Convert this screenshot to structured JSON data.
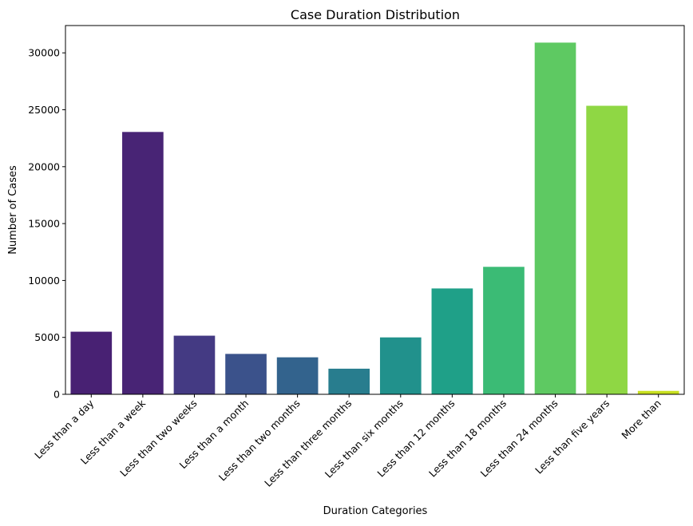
{
  "chart_data": {
    "type": "bar",
    "title": "Case Duration Distribution",
    "xlabel": "Duration Categories",
    "ylabel": "Number of Cases",
    "categories": [
      "Less than a day",
      "Less than a week",
      "Less than two weeks",
      "Less than a month",
      "Less than two months",
      "Less than three months",
      "Less than six months",
      "Less than 12 months",
      "Less than 18 months",
      "Less than 24 months",
      "Less than five years",
      "More than"
    ],
    "values": [
      5500,
      23050,
      5150,
      3550,
      3250,
      2250,
      5000,
      9300,
      11200,
      30900,
      25350,
      300
    ],
    "colors": [
      "#482173",
      "#482475",
      "#443a83",
      "#3b528b",
      "#33638d",
      "#287d8e",
      "#21918c",
      "#1fa088",
      "#3bbb75",
      "#5ec962",
      "#8fd744",
      "#c8e020"
    ],
    "ylim": [
      0,
      32400
    ],
    "yticks": [
      0,
      5000,
      10000,
      15000,
      20000,
      25000,
      30000
    ],
    "grid": false,
    "legend": "none"
  }
}
